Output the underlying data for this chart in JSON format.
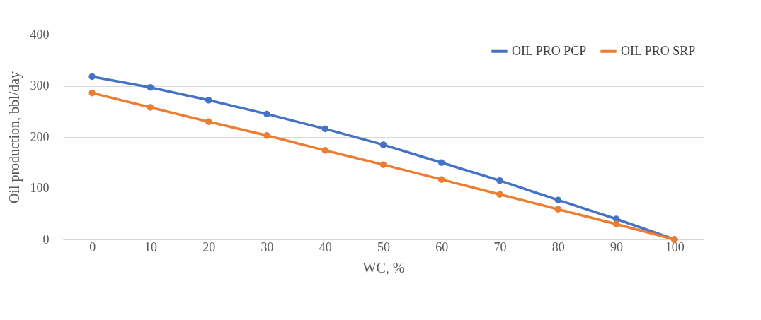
{
  "chart_data": {
    "type": "line",
    "xlabel": "WC, %",
    "ylabel": "Oil production, bbl/day",
    "categories": [
      "0",
      "10",
      "20",
      "30",
      "40",
      "50",
      "60",
      "70",
      "80",
      "90",
      "100"
    ],
    "series": [
      {
        "name": "OIL PRO PCP",
        "color": "#4472c4",
        "values": [
          318,
          297,
          272,
          245,
          216,
          185,
          150,
          115,
          77,
          40,
          0
        ]
      },
      {
        "name": "OIL PRO SRP",
        "color": "#ed7d31",
        "values": [
          286,
          258,
          230,
          203,
          174,
          146,
          117,
          88,
          59,
          30,
          0
        ]
      }
    ],
    "ylim": [
      0,
      400
    ],
    "yticks": [
      0,
      100,
      200,
      300,
      400
    ],
    "grid": "y",
    "legend": "top right",
    "marker": "circle",
    "line_style": "solid"
  }
}
